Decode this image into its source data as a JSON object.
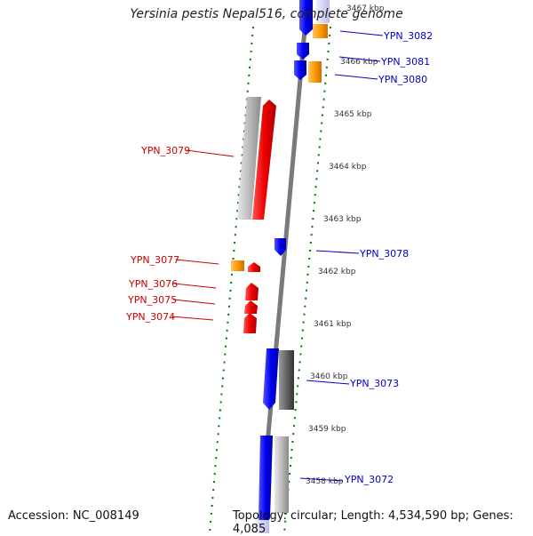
{
  "title": "Yersinia pestis Nepal516, complete genome",
  "footer": {
    "accession": "Accession: NC_008149",
    "summary": "Topology: circular; Length: 4,534,590 bp; Genes: 4,085"
  },
  "colors": {
    "forward_gene": "#ee0000",
    "reverse_gene": "#0000ee",
    "orange_gene": "#ff9900",
    "gray_gene": "#bbbbbb",
    "dark_gray_gene": "#666666",
    "forward_label": "#cc0000",
    "reverse_label": "#0000cc",
    "tick": "#007700",
    "axis": "#888888"
  },
  "ticks": [
    {
      "label": "3467 kbp",
      "kbp": 3467
    },
    {
      "label": "3466 kbp",
      "kbp": 3466
    },
    {
      "label": "3465 kbp",
      "kbp": 3465
    },
    {
      "label": "3464 kbp",
      "kbp": 3464
    },
    {
      "label": "3463 kbp",
      "kbp": 3463
    },
    {
      "label": "3462 kbp",
      "kbp": 3462
    },
    {
      "label": "3461 kbp",
      "kbp": 3461
    },
    {
      "label": "3460 kbp",
      "kbp": 3460
    },
    {
      "label": "3459 kbp",
      "kbp": 3459
    },
    {
      "label": "3458 kbp",
      "kbp": 3458
    }
  ],
  "gene_labels": [
    {
      "name": "YPN_3082",
      "strand": "reverse"
    },
    {
      "name": "YPN_3081",
      "strand": "reverse"
    },
    {
      "name": "YPN_3080",
      "strand": "reverse"
    },
    {
      "name": "YPN_3079",
      "strand": "forward"
    },
    {
      "name": "YPN_3078",
      "strand": "reverse"
    },
    {
      "name": "YPN_3077",
      "strand": "forward"
    },
    {
      "name": "YPN_3076",
      "strand": "forward"
    },
    {
      "name": "YPN_3075",
      "strand": "forward"
    },
    {
      "name": "YPN_3074",
      "strand": "forward"
    },
    {
      "name": "YPN_3073",
      "strand": "reverse"
    },
    {
      "name": "YPN_3072",
      "strand": "reverse"
    }
  ]
}
